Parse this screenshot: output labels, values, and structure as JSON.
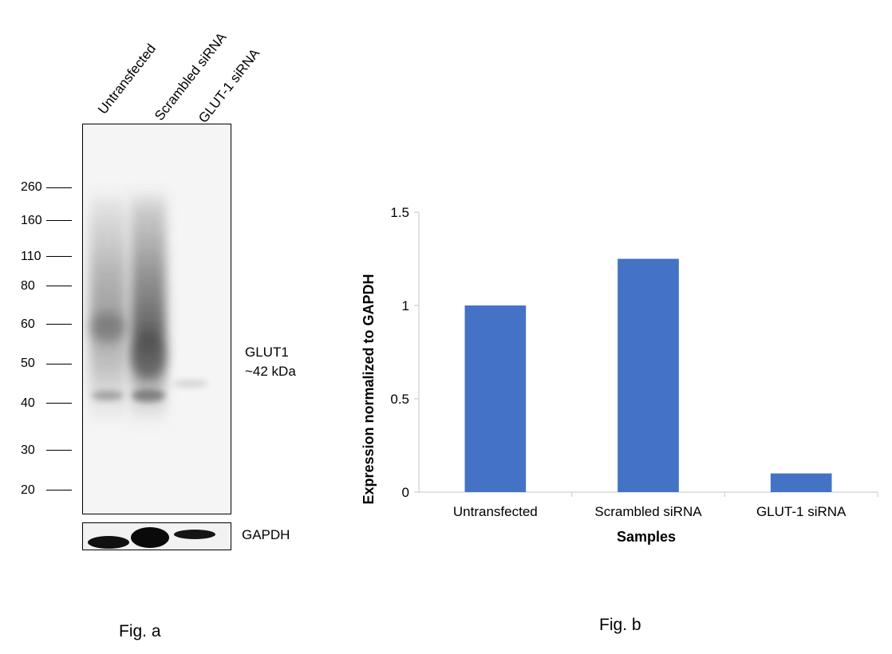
{
  "fig_a": {
    "lanes": [
      "Untransfected",
      "Scrambled siRNA",
      "GLUT-1 siRNA"
    ],
    "mw_markers": [
      "260",
      "160",
      "110",
      "80",
      "60",
      "50",
      "40",
      "30",
      "20"
    ],
    "target_label": "GLUT1",
    "target_size": "~42 kDa",
    "loading_control": "GAPDH",
    "caption": "Fig. a"
  },
  "fig_b": {
    "caption": "Fig. b"
  },
  "chart_data": {
    "type": "bar",
    "categories": [
      "Untransfected",
      "Scrambled siRNA",
      "GLUT-1 siRNA"
    ],
    "values": [
      1.0,
      1.25,
      0.1
    ],
    "xlabel": "Samples",
    "ylabel": "Expression normalized to GAPDH",
    "ylim": [
      0,
      1.5
    ],
    "yticks": [
      "0",
      "0.5",
      "1",
      "1.5"
    ],
    "grid": false,
    "bar_color": "#4472C4"
  }
}
